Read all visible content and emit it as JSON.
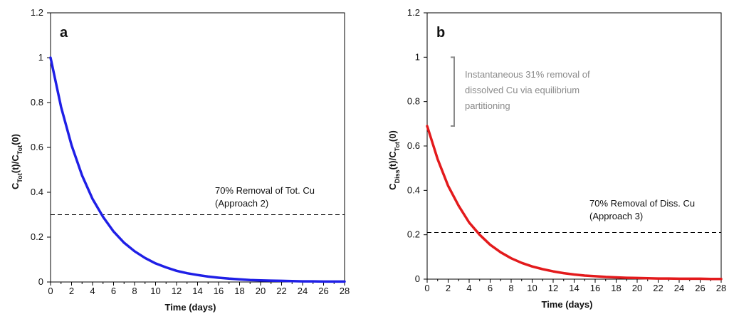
{
  "chart_data": [
    {
      "type": "line",
      "panel_label": "a",
      "xlabel": "Time (days)",
      "ylabel_main": "C",
      "ylabel_sub1": "Tot",
      "ylabel_mid": "(t)/C",
      "ylabel_sub2": "Tot",
      "ylabel_end": "(0)",
      "xlim": [
        0,
        28
      ],
      "ylim": [
        0,
        1.2
      ],
      "xticks": [
        "0",
        "2",
        "4",
        "6",
        "8",
        "10",
        "12",
        "14",
        "16",
        "18",
        "20",
        "22",
        "24",
        "26",
        "28"
      ],
      "yticks": [
        "0",
        "0.2",
        "0.4",
        "0.6",
        "0.8",
        "1",
        "1.2"
      ],
      "series": [
        {
          "color": "#1f1fe6",
          "x": [
            0,
            1,
            2,
            3,
            4,
            5,
            6,
            7,
            8,
            9,
            10,
            11,
            12,
            13,
            14,
            15,
            16,
            17,
            18,
            19,
            20,
            21,
            22,
            23,
            24,
            25,
            26,
            27,
            28
          ],
          "y": [
            1.0,
            0.78,
            0.61,
            0.475,
            0.37,
            0.29,
            0.225,
            0.175,
            0.137,
            0.107,
            0.083,
            0.065,
            0.05,
            0.039,
            0.031,
            0.024,
            0.019,
            0.015,
            0.012,
            0.009,
            0.007,
            0.006,
            0.005,
            0.004,
            0.003,
            0.003,
            0.002,
            0.002,
            0.002
          ]
        }
      ],
      "hline": {
        "y": 0.3,
        "style": "dashed"
      },
      "annotations": [
        {
          "text": "70% Removal of Tot. Cu"
        },
        {
          "text": "(Approach 2)"
        }
      ]
    },
    {
      "type": "line",
      "panel_label": "b",
      "xlabel": "Time (days)",
      "ylabel_main": "C",
      "ylabel_sub1": "Diss",
      "ylabel_mid": "(t)/C",
      "ylabel_sub2": "Tot",
      "ylabel_end": "(0)",
      "xlim": [
        0,
        28
      ],
      "ylim": [
        0,
        1.2
      ],
      "xticks": [
        "0",
        "2",
        "4",
        "6",
        "8",
        "10",
        "12",
        "14",
        "16",
        "18",
        "20",
        "22",
        "24",
        "26",
        "28"
      ],
      "yticks": [
        "0",
        "0.2",
        "0.4",
        "0.6",
        "0.8",
        "1",
        "1.2"
      ],
      "series": [
        {
          "color": "#e31a1c",
          "x": [
            0,
            1,
            2,
            3,
            4,
            5,
            6,
            7,
            8,
            9,
            10,
            11,
            12,
            13,
            14,
            15,
            16,
            17,
            18,
            19,
            20,
            21,
            22,
            23,
            24,
            25,
            26,
            27,
            28
          ],
          "y": [
            0.69,
            0.54,
            0.42,
            0.33,
            0.255,
            0.2,
            0.155,
            0.121,
            0.094,
            0.073,
            0.057,
            0.045,
            0.035,
            0.027,
            0.021,
            0.016,
            0.013,
            0.01,
            0.008,
            0.006,
            0.005,
            0.004,
            0.003,
            0.003,
            0.002,
            0.002,
            0.002,
            0.001,
            0.001
          ]
        }
      ],
      "hline": {
        "y": 0.21,
        "style": "dashed"
      },
      "bracket": {
        "y_top": 1.0,
        "y_bottom": 0.69,
        "color": "#8a8a8a"
      },
      "annotations": [
        {
          "text": "70% Removal of Diss. Cu"
        },
        {
          "text": "(Approach 3)"
        },
        {
          "text": "Instantaneous 31% removal of"
        },
        {
          "text": "dissolved Cu via equilibrium"
        },
        {
          "text": "partitioning"
        }
      ]
    }
  ]
}
